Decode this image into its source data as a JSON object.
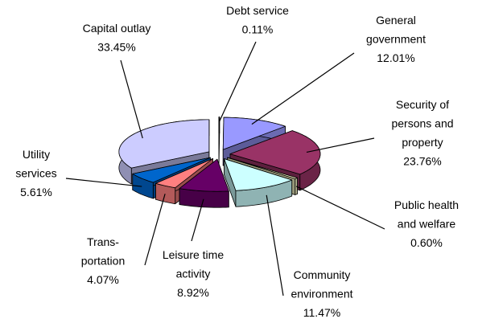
{
  "chart_data": {
    "type": "pie",
    "categories": [
      "Debt service",
      "General\ngovernment",
      "Security of\npersons and\nproperty",
      "Public health\nand welfare",
      "Community\nenvironment",
      "Leisure time\nactivity",
      "Trans-\nportation",
      "Utility\nservices",
      "Capital outlay"
    ],
    "values": [
      0.11,
      12.01,
      23.76,
      0.6,
      11.47,
      8.92,
      4.07,
      5.61,
      33.45
    ],
    "value_labels": [
      "0.11%",
      "12.01%",
      "23.76%",
      "0.60%",
      "11.47%",
      "8.92%",
      "4.07%",
      "5.61%",
      "33.45%"
    ],
    "colors": [
      "#1a1a6e",
      "#9999ff",
      "#993366",
      "#ffffcc",
      "#ccffff",
      "#660066",
      "#ff8080",
      "#0066cc",
      "#ccccff"
    ]
  }
}
